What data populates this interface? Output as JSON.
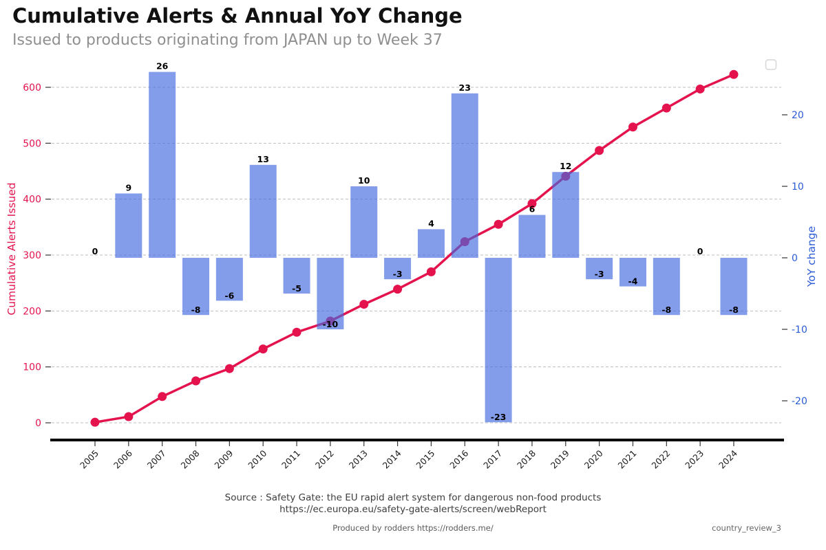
{
  "header": {
    "title": "Cumulative Alerts & Annual YoY Change",
    "subtitle": "Issued to products originating from JAPAN up to Week 37"
  },
  "chart_data": {
    "type": "bar",
    "subtype": "bar+line dual-axis combo",
    "categories": [
      "2005",
      "2006",
      "2007",
      "2008",
      "2009",
      "2010",
      "2011",
      "2012",
      "2013",
      "2014",
      "2015",
      "2016",
      "2017",
      "2018",
      "2019",
      "2020",
      "2021",
      "2022",
      "2023",
      "2024"
    ],
    "series": [
      {
        "name": "YoY change",
        "type": "bar",
        "axis": "right",
        "values": [
          0,
          9,
          26,
          -8,
          -6,
          13,
          -5,
          -10,
          10,
          -3,
          4,
          23,
          -23,
          6,
          12,
          -3,
          -4,
          -8,
          0,
          -8
        ]
      },
      {
        "name": "Cumulative Alerts Issued",
        "type": "line",
        "axis": "left",
        "values": [
          1,
          11,
          47,
          75,
          97,
          132,
          162,
          182,
          212,
          239,
          270,
          324,
          355,
          392,
          441,
          487,
          529,
          563,
          597,
          623
        ]
      }
    ],
    "left_axis": {
      "label": "Cumulative Alerts Issued",
      "ticks": [
        0,
        100,
        200,
        300,
        400,
        500,
        600
      ],
      "range": [
        0,
        640
      ],
      "color": "#e4134e"
    },
    "right_axis": {
      "label": "YoY change",
      "ticks": [
        -20,
        -10,
        0,
        10,
        20
      ],
      "range": [
        -25.5,
        27.5
      ],
      "color": "#2a5bd7"
    },
    "colors": {
      "bar": "#4169e1",
      "bar_opacity": 0.65,
      "line": "#e4134e",
      "grid": "#bdbdbd",
      "axis_line": "#000000",
      "bar_label": "#000000"
    },
    "grid": "horizontal dashed at left-axis ticks",
    "legend": {
      "visible": true,
      "entries": [],
      "position": "top-right"
    }
  },
  "footer": {
    "source_line1": "Source : Safety Gate: the EU rapid alert system for dangerous non-food products",
    "source_line2": "https://ec.europa.eu/safety-gate-alerts/screen/webReport",
    "produced_by": "Produced by rodders https://rodders.me/",
    "file_tag": "country_review_3"
  }
}
